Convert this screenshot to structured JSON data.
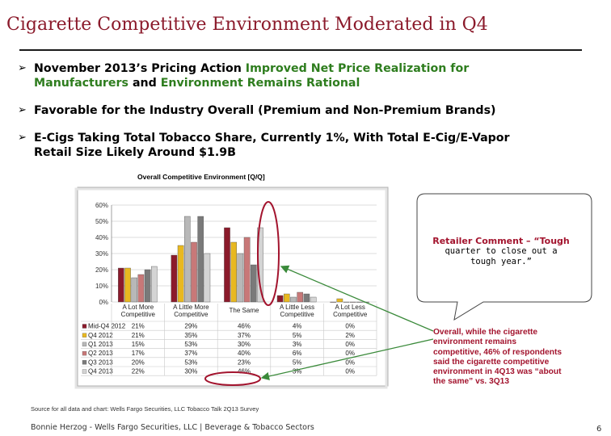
{
  "title": "Cigarette Competitive Environment Moderated in Q4",
  "bullets": [
    {
      "line1_a": "November 2013’s Pricing Action ",
      "line1_b": "Improved Net Price Realization for",
      "line2_a": "Manufacturers",
      "line2_b": " and ",
      "line2_c": "Environment Remains Rational"
    },
    {
      "text": "Favorable for the Industry Overall (Premium and Non-Premium Brands)"
    },
    {
      "line1": "E-Cigs Taking Total Tobacco Share, Currently 1%, With Total E-Cig/E-Vapor",
      "line2": "Retail Size Likely Around $1.9B"
    }
  ],
  "bullet_icon": "arrow-bullet-icon",
  "callout": {
    "lead": "Retailer Comment – “Tough",
    "line2": "quarter to close out a",
    "line3": "tough year.”"
  },
  "note": {
    "line1": "Overall, while the cigarette",
    "line2": "environment remains",
    "line3": "competitive, 46% of respondents",
    "line4": "said the cigarette competitive",
    "line5": "environment in 4Q13 was “about",
    "line6": "the same” vs. 3Q13"
  },
  "source": "Source for all data and chart: Wells Fargo Securities, LLC Tobacco Talk 2Q13 Survey",
  "footer": "Bonnie Herzog - Wells Fargo Securities, LLC | Beverage & Tobacco Sectors",
  "page_number": "6",
  "colors": {
    "title": "#8b1a2b",
    "highlight_green": "#2e7d1e",
    "note_red": "#a3142e",
    "highlight_ellipse": "#a3142e",
    "arrow_green": "#3a8a3a"
  },
  "chart_data": {
    "type": "bar",
    "title": "Overall Competitive Environment [Q/Q]",
    "categories": [
      [
        "A Lot More",
        "Competitive"
      ],
      [
        "A Little More",
        "Competitive"
      ],
      [
        "The Same"
      ],
      [
        "A Little Less",
        "Competitive"
      ],
      [
        "A Lot Less",
        "Competitive"
      ]
    ],
    "series": [
      {
        "name": "Mid-Q4 2012",
        "color": "#8b1a2b",
        "values": [
          21,
          29,
          46,
          4,
          0
        ],
        "labels": [
          "21%",
          "29%",
          "46%",
          "4%",
          "0%"
        ]
      },
      {
        "name": "Q4 2012",
        "color": "#e8b820",
        "values": [
          21,
          35,
          37,
          5,
          2
        ],
        "labels": [
          "21%",
          "35%",
          "37%",
          "5%",
          "2%"
        ]
      },
      {
        "name": "Q1 2013",
        "color": "#b8b8b8",
        "values": [
          15,
          53,
          30,
          3,
          0
        ],
        "labels": [
          "15%",
          "53%",
          "30%",
          "3%",
          "0%"
        ]
      },
      {
        "name": "Q2 2013",
        "color": "#c87878",
        "values": [
          17,
          37,
          40,
          6,
          0
        ],
        "labels": [
          "17%",
          "37%",
          "40%",
          "6%",
          "0%"
        ]
      },
      {
        "name": "Q3 2013",
        "color": "#7a7a7a",
        "values": [
          20,
          53,
          23,
          5,
          0
        ],
        "labels": [
          "20%",
          "53%",
          "23%",
          "5%",
          "0%"
        ]
      },
      {
        "name": "Q4 2013",
        "color": "#d4d4d4",
        "values": [
          22,
          30,
          46,
          3,
          0
        ],
        "labels": [
          "22%",
          "30%",
          "46%",
          "3%",
          "0%"
        ]
      }
    ],
    "yticks": [
      "0%",
      "10%",
      "20%",
      "30%",
      "40%",
      "50%",
      "60%"
    ],
    "ylim": [
      0,
      60
    ],
    "grid": true,
    "legend": "table below chart"
  }
}
